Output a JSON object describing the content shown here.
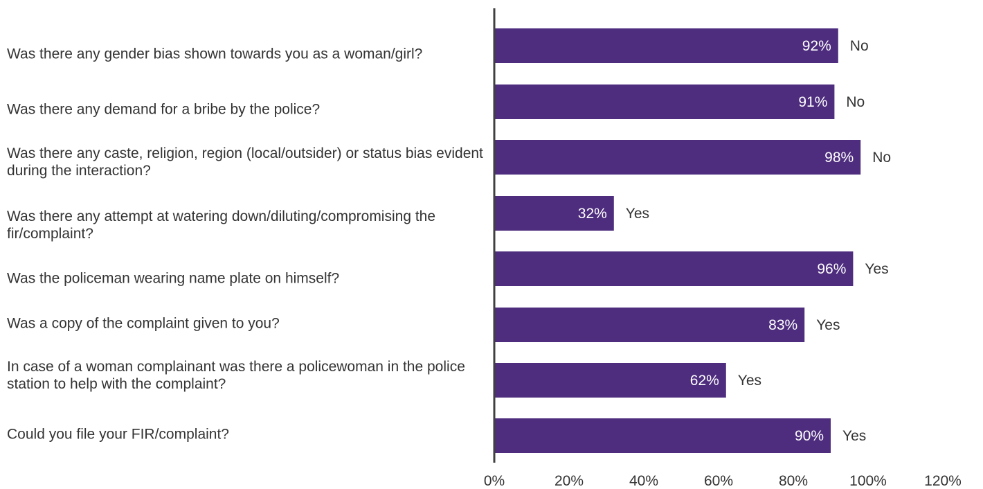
{
  "chart_data": {
    "type": "bar",
    "orientation": "horizontal",
    "categories": [
      "Was there any gender bias shown towards you as a woman/girl?",
      "Was there any demand for a bribe by the police?",
      "Was there any caste, religion, region (local/outsider) or status bias evident during the interaction?",
      "Was there any attempt at watering down/diluting/compromising the fir/complaint?",
      "Was the policeman wearing name plate on himself?",
      "Was a copy of the complaint given to you?",
      "In case of a woman complainant was there a policewoman in the police station to help with the complaint?",
      "Could you file your FIR/complaint?"
    ],
    "values": [
      92,
      91,
      98,
      32,
      96,
      83,
      62,
      90
    ],
    "value_labels": [
      "92%",
      "91%",
      "98%",
      "32%",
      "96%",
      "83%",
      "62%",
      "90%"
    ],
    "annotations": [
      "No",
      "No",
      "No",
      "Yes",
      "Yes",
      "Yes",
      "Yes",
      "Yes"
    ],
    "xlim": [
      0,
      120
    ],
    "xticks": [
      "0%",
      "20%",
      "40%",
      "60%",
      "80%",
      "100%",
      "120%"
    ],
    "grid": false,
    "bar_color": "#4e2d7e",
    "axis_color": "#404040",
    "value_label_color": "#ffffff",
    "text_color": "#333333"
  }
}
